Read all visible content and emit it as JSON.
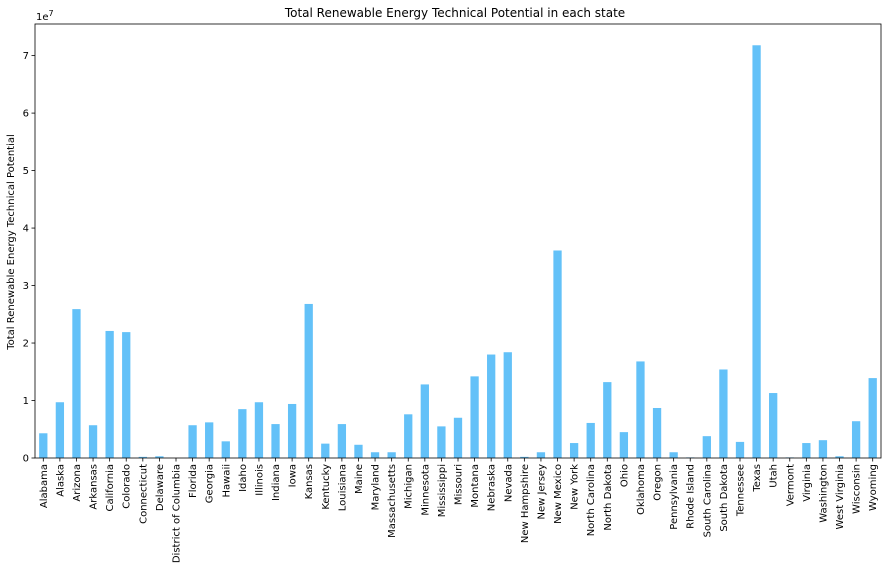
{
  "chart_data": {
    "type": "bar",
    "title": "Total Renewable Energy Technical Potential in each state",
    "xlabel": "",
    "ylabel": "Total Renewable Energy Technical Potential",
    "offset_label": "1e7",
    "ylim": [
      0,
      7.55
    ],
    "y_ticks": [
      0,
      1,
      2,
      3,
      4,
      5,
      6,
      7
    ],
    "bar_color": "#63c1f8",
    "categories": [
      "Alabama",
      "Alaska",
      "Arizona",
      "Arkansas",
      "California",
      "Colorado",
      "Connecticut",
      "Delaware",
      "District of Columbia",
      "Florida",
      "Georgia",
      "Hawaii",
      "Idaho",
      "Illinois",
      "Indiana",
      "Iowa",
      "Kansas",
      "Kentucky",
      "Louisiana",
      "Maine",
      "Maryland",
      "Massachusetts",
      "Michigan",
      "Minnesota",
      "Mississippi",
      "Missouri",
      "Montana",
      "Nebraska",
      "Nevada",
      "New Hampshire",
      "New Jersey",
      "New Mexico",
      "New York",
      "North Carolina",
      "North Dakota",
      "Ohio",
      "Oklahoma",
      "Oregon",
      "Pennsylvania",
      "Rhode Island",
      "South Carolina",
      "South Dakota",
      "Tennessee",
      "Texas",
      "Utah",
      "Vermont",
      "Virginia",
      "Washington",
      "West Virginia",
      "Wisconsin",
      "Wyoming"
    ],
    "values": [
      0.43,
      0.97,
      2.59,
      0.57,
      2.21,
      2.19,
      0.02,
      0.03,
      0.0,
      0.57,
      0.62,
      0.29,
      0.85,
      0.97,
      0.59,
      0.94,
      2.68,
      0.25,
      0.59,
      0.23,
      0.1,
      0.1,
      0.76,
      1.28,
      0.55,
      0.7,
      1.42,
      1.8,
      1.84,
      0.02,
      0.1,
      3.61,
      0.26,
      0.61,
      1.32,
      0.45,
      1.68,
      0.87,
      0.1,
      0.01,
      0.38,
      1.54,
      0.28,
      7.18,
      1.13,
      0.01,
      0.26,
      0.31,
      0.03,
      0.64,
      1.39
    ]
  }
}
